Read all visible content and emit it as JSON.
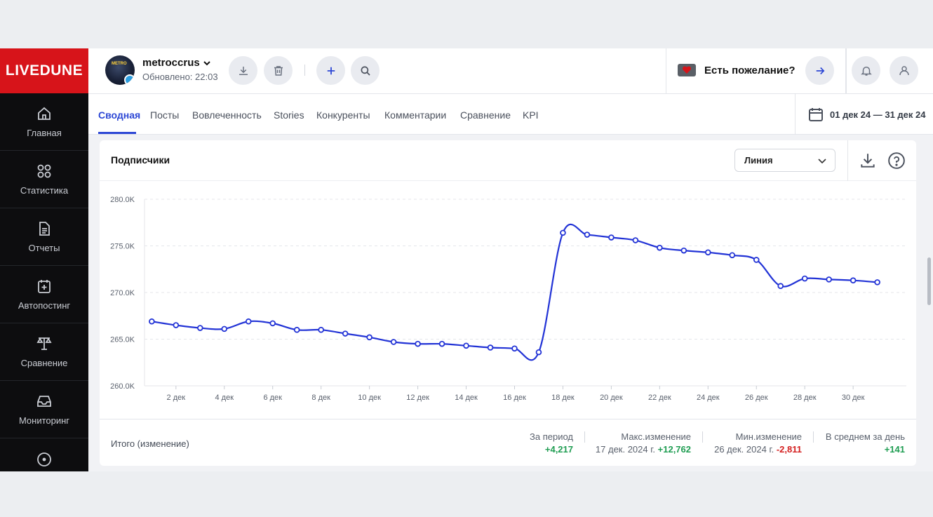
{
  "brand": {
    "logo": "LIVEDUNE",
    "color": "#d7141a"
  },
  "sidebar": {
    "items": [
      {
        "label": "Главная",
        "icon": "home-icon"
      },
      {
        "label": "Статистика",
        "icon": "grid-icon"
      },
      {
        "label": "Отчеты",
        "icon": "report-icon"
      },
      {
        "label": "Автопостинг",
        "icon": "calendar-plus-icon"
      },
      {
        "label": "Сравнение",
        "icon": "scales-icon"
      },
      {
        "label": "Мониторинг",
        "icon": "inbox-icon"
      },
      {
        "label": "",
        "icon": "target-icon"
      }
    ]
  },
  "header": {
    "account_name": "metroccrus",
    "updated": "Обновлено: 22:03",
    "avatar_text": "METRO",
    "wish_label": "Есть пожелание?"
  },
  "tabs": [
    {
      "label": "Сводная",
      "active": true
    },
    {
      "label": "Посты"
    },
    {
      "label": "Вовлеченность"
    },
    {
      "label": "Stories"
    },
    {
      "label": "Конкуренты"
    },
    {
      "label": "Комментарии"
    },
    {
      "label": "Сравнение"
    },
    {
      "label": "KPI"
    }
  ],
  "date_range": "01 дек 24 — 31 дек 24",
  "card": {
    "title": "Подписчики",
    "chart_type_select": "Линия"
  },
  "chart_data": {
    "type": "line",
    "x": [
      1,
      2,
      3,
      4,
      5,
      6,
      7,
      8,
      9,
      10,
      11,
      12,
      13,
      14,
      15,
      16,
      17,
      18,
      19,
      20,
      21,
      22,
      23,
      24,
      25,
      26,
      27,
      28,
      29,
      30,
      31
    ],
    "x_tick_labels": [
      "2 дек",
      "4 дек",
      "6 дек",
      "8 дек",
      "10 дек",
      "12 дек",
      "14 дек",
      "16 дек",
      "18 дек",
      "20 дек",
      "22 дек",
      "24 дек",
      "26 дек",
      "28 дек",
      "30 дек"
    ],
    "x_tick_values": [
      2,
      4,
      6,
      8,
      10,
      12,
      14,
      16,
      18,
      20,
      22,
      24,
      26,
      28,
      30
    ],
    "y_tick_labels": [
      "260.0K",
      "265.0K",
      "270.0K",
      "275.0K",
      "280.0K"
    ],
    "y_tick_values": [
      260000,
      265000,
      270000,
      275000,
      280000
    ],
    "ylim": [
      260000,
      280000
    ],
    "xlim": [
      0.7,
      32.2
    ],
    "series": [
      {
        "color": "#2233d6",
        "values": [
          266900,
          266500,
          266200,
          266100,
          266900,
          266700,
          266000,
          266000,
          265600,
          265200,
          264700,
          264500,
          264500,
          264300,
          264100,
          264000,
          263600,
          276400,
          276200,
          275900,
          275600,
          274800,
          274500,
          274300,
          274000,
          273500,
          270700,
          271500,
          271400,
          271300,
          271100
        ]
      }
    ],
    "grid": true
  },
  "summary": {
    "label": "Итого (изменение)",
    "period_label": "За период",
    "period_value": "+4,217",
    "max_label": "Макс.изменение",
    "max_date": "17 дек. 2024 г.",
    "max_value": "+12,762",
    "min_label": "Мин.изменение",
    "min_date": "26 дек. 2024 г.",
    "min_value": "-2,811",
    "avg_label": "В среднем за день",
    "avg_value": "+141"
  }
}
